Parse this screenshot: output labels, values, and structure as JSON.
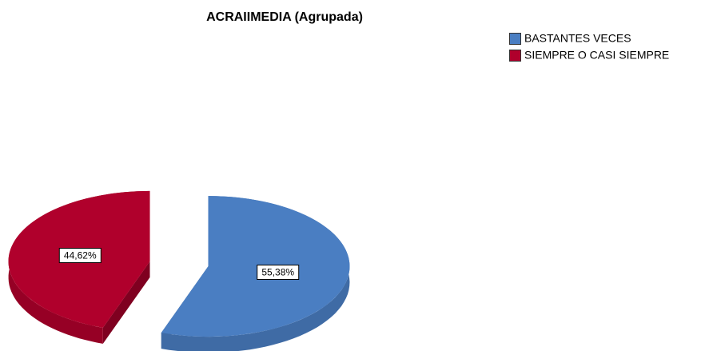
{
  "chart_data": {
    "type": "pie",
    "title": "ACRAIIMEDIA (Agrupada)",
    "categories": [
      "BASTANTES VECES",
      "SIEMPRE O CASI SIEMPRE"
    ],
    "values": [
      55.38,
      44.62
    ],
    "value_labels": [
      "55,38%",
      "44,62%"
    ],
    "colors": [
      "#4a7ec2",
      "#b0002c"
    ],
    "legend": "top-right"
  }
}
